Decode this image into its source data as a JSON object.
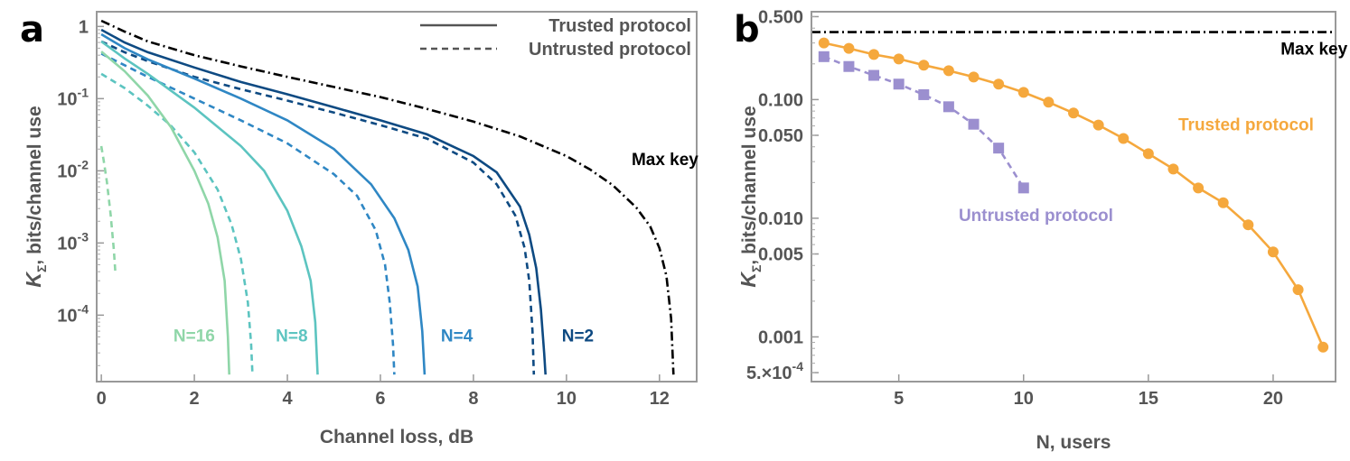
{
  "panels": [
    {
      "label": "a"
    },
    {
      "label": "b"
    }
  ],
  "chart_data": [
    {
      "type": "line",
      "panel": "a",
      "xlabel": "Channel loss, dB",
      "ylabel_main": "K",
      "ylabel_sub": "Σ",
      "ylabel_rest": ", bits/channel use",
      "xlim": [
        -0.1,
        12.8
      ],
      "ylim": [
        1.2e-05,
        1.6
      ],
      "yscale": "log",
      "grid": false,
      "xticks": [
        0,
        2,
        4,
        6,
        8,
        10,
        12
      ],
      "xtick_labels": [
        "0",
        "2",
        "4",
        "6",
        "8",
        "10",
        "12"
      ],
      "yticks": [
        {
          "v": 1,
          "base": "1",
          "exp": ""
        },
        {
          "v": 0.1,
          "base": "10",
          "exp": "-1"
        },
        {
          "v": 0.01,
          "base": "10",
          "exp": "-2"
        },
        {
          "v": 0.001,
          "base": "10",
          "exp": "-3"
        },
        {
          "v": 0.0001,
          "base": "10",
          "exp": "-4"
        }
      ],
      "legend": {
        "position": "top-right",
        "entries": [
          {
            "label": "Trusted protocol",
            "style": "solid"
          },
          {
            "label": "Untrusted protocol",
            "style": "dashed"
          }
        ]
      },
      "series": [
        {
          "style": "dashdot",
          "color": "#000000",
          "x": [
            0,
            0.5,
            1,
            2,
            3,
            4,
            5,
            6,
            7,
            8,
            9,
            10,
            10.5,
            11,
            11.5,
            11.8,
            12,
            12.15,
            12.25,
            12.3
          ],
          "y": [
            1.2,
            0.85,
            0.62,
            0.4,
            0.28,
            0.2,
            0.145,
            0.105,
            0.072,
            0.048,
            0.03,
            0.016,
            0.0105,
            0.0063,
            0.0031,
            0.0017,
            0.00085,
            0.00035,
            9e-05,
            1.5e-05
          ]
        },
        {
          "style": "solid",
          "color": "#0e4a82",
          "x": [
            0,
            0.5,
            1,
            2,
            3,
            4,
            5,
            6,
            7,
            8,
            8.5,
            9,
            9.2,
            9.35,
            9.45,
            9.52,
            9.55
          ],
          "y": [
            0.9,
            0.6,
            0.44,
            0.27,
            0.17,
            0.115,
            0.076,
            0.05,
            0.032,
            0.016,
            0.0095,
            0.0032,
            0.0013,
            0.00045,
            0.00012,
            3e-05,
            1.5e-05
          ]
        },
        {
          "style": "dashed",
          "color": "#0e4a82",
          "x": [
            0,
            0.5,
            1,
            2,
            3,
            4,
            5,
            6,
            7,
            8,
            8.5,
            8.9,
            9.1,
            9.2,
            9.27,
            9.3
          ],
          "y": [
            0.62,
            0.44,
            0.33,
            0.2,
            0.135,
            0.094,
            0.064,
            0.043,
            0.028,
            0.013,
            0.0065,
            0.0024,
            0.00085,
            0.0003,
            6e-05,
            1.5e-05
          ]
        },
        {
          "style": "solid",
          "color": "#2f87c4",
          "x": [
            0,
            0.5,
            1,
            2,
            3,
            4,
            5,
            5.8,
            6.3,
            6.6,
            6.8,
            6.9,
            6.95
          ],
          "y": [
            0.78,
            0.5,
            0.35,
            0.19,
            0.1,
            0.05,
            0.02,
            0.0065,
            0.0022,
            0.0008,
            0.00025,
            6e-05,
            1.5e-05
          ]
        },
        {
          "style": "dashed",
          "color": "#2f87c4",
          "x": [
            0,
            0.5,
            1,
            2,
            3,
            4,
            5,
            5.5,
            5.9,
            6.1,
            6.2,
            6.27,
            6.3
          ],
          "y": [
            0.42,
            0.29,
            0.2,
            0.1,
            0.05,
            0.024,
            0.009,
            0.0045,
            0.0015,
            0.0005,
            0.00015,
            4e-05,
            1.5e-05
          ]
        },
        {
          "style": "solid",
          "color": "#5cc4c0",
          "x": [
            0,
            0.5,
            1,
            2,
            3,
            3.5,
            4,
            4.3,
            4.5,
            4.6,
            4.65
          ],
          "y": [
            0.62,
            0.36,
            0.22,
            0.075,
            0.022,
            0.01,
            0.0028,
            0.0009,
            0.0003,
            8e-05,
            1.5e-05
          ]
        },
        {
          "style": "dashed",
          "color": "#5cc4c0",
          "x": [
            0,
            0.5,
            1,
            1.5,
            2,
            2.5,
            2.8,
            3.0,
            3.15,
            3.22,
            3.25
          ],
          "y": [
            0.22,
            0.14,
            0.08,
            0.042,
            0.018,
            0.0055,
            0.0018,
            0.0006,
            0.00015,
            4e-05,
            1.5e-05
          ]
        },
        {
          "style": "solid",
          "color": "#8fd6a8",
          "x": [
            0,
            0.5,
            1,
            1.5,
            2,
            2.3,
            2.5,
            2.65,
            2.72,
            2.75
          ],
          "y": [
            0.45,
            0.24,
            0.11,
            0.04,
            0.01,
            0.0035,
            0.0012,
            0.0003,
            5e-05,
            1.5e-05
          ]
        },
        {
          "style": "dashed",
          "color": "#8fd6a8",
          "x": [
            0,
            0.05,
            0.12,
            0.2,
            0.27,
            0.3
          ],
          "y": [
            0.022,
            0.014,
            0.007,
            0.0025,
            0.0008,
            0.0004
          ]
        }
      ],
      "annotations": [
        {
          "text": "N=16",
          "x": 1.55,
          "y": 4.3e-05,
          "color": "#8fd6a8"
        },
        {
          "text": "N=8",
          "x": 3.75,
          "y": 4.3e-05,
          "color": "#5cc4c0"
        },
        {
          "text": "N=4",
          "x": 7.3,
          "y": 4.3e-05,
          "color": "#2f87c4"
        },
        {
          "text": "N=2",
          "x": 9.9,
          "y": 4.3e-05,
          "color": "#0e4a82"
        },
        {
          "text": "Max key",
          "x": 11.4,
          "y": 0.012,
          "color": "#000000"
        }
      ]
    },
    {
      "type": "line",
      "panel": "b",
      "xlabel": "N, users",
      "ylabel_main": "K",
      "ylabel_sub": "Σ",
      "ylabel_rest": ", bits/channel use",
      "xlim": [
        1.5,
        22.5
      ],
      "ylim": [
        0.00042,
        0.55
      ],
      "yscale": "log",
      "grid": false,
      "xticks": [
        5,
        10,
        15,
        20
      ],
      "xtick_labels": [
        "5",
        "10",
        "15",
        "20"
      ],
      "yticks": [
        {
          "v": 0.5,
          "label": "0.500"
        },
        {
          "v": 0.1,
          "label": "0.100"
        },
        {
          "v": 0.05,
          "label": "0.050"
        },
        {
          "v": 0.01,
          "label": "0.010"
        },
        {
          "v": 0.005,
          "label": "0.005"
        },
        {
          "v": 0.001,
          "label": "0.001"
        },
        {
          "v": 0.0005,
          "label": "5.×10",
          "exp": "-4"
        }
      ],
      "series": [
        {
          "name": "Max key",
          "style": "dashdot",
          "color": "#000000",
          "x": [
            1.5,
            22.5
          ],
          "y": [
            0.37,
            0.37
          ]
        },
        {
          "name": "Trusted protocol",
          "style": "solid",
          "marker": "circle",
          "color": "#f5a83d",
          "x": [
            2,
            3,
            4,
            5,
            6,
            7,
            8,
            9,
            10,
            11,
            12,
            13,
            14,
            15,
            16,
            17,
            18,
            19,
            20,
            21,
            22
          ],
          "y": [
            0.3,
            0.27,
            0.24,
            0.22,
            0.195,
            0.175,
            0.155,
            0.135,
            0.115,
            0.095,
            0.077,
            0.061,
            0.047,
            0.035,
            0.026,
            0.018,
            0.0135,
            0.0088,
            0.0052,
            0.0025,
            0.00082
          ]
        },
        {
          "name": "Untrusted protocol",
          "style": "dashed",
          "marker": "square",
          "color": "#9b8fcf",
          "x": [
            2,
            3,
            4,
            5,
            6,
            7,
            8,
            9,
            10
          ],
          "y": [
            0.23,
            0.19,
            0.16,
            0.135,
            0.11,
            0.087,
            0.062,
            0.039,
            0.018
          ]
        }
      ],
      "annotations": [
        {
          "text": "Max key",
          "x": 20.3,
          "y": 0.24,
          "color": "#000000"
        },
        {
          "text": "Trusted protocol",
          "x": 16.2,
          "y": 0.055,
          "color": "#f5a83d"
        },
        {
          "text": "Untrusted protocol",
          "x": 7.4,
          "y": 0.0095,
          "color": "#9b8fcf"
        }
      ]
    }
  ]
}
